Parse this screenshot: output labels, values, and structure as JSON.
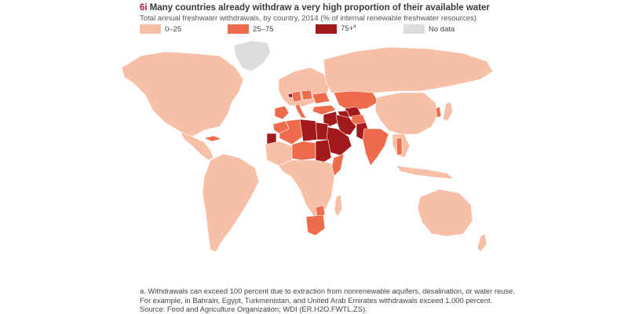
{
  "figure": {
    "number": "6i",
    "title": "Many countries already withdraw a very high proportion of their available water",
    "subtitle": "Total annual freshwater withdrawals, by country, 2014 (% of internal renewable freshwater resources)"
  },
  "legend": [
    {
      "label": "0–25",
      "color": "#f7bfa6",
      "note_marker": ""
    },
    {
      "label": "25–75",
      "color": "#ee6b4c",
      "note_marker": ""
    },
    {
      "label": "75+",
      "color": "#a31a1c",
      "note_marker": "a"
    },
    {
      "label": "No data",
      "color": "#dcdcdc",
      "note_marker": ""
    }
  ],
  "notes": {
    "footnote_line1": "a. Withdrawals can exceed 100 percent due to extraction from nonrenewable aquifers, desalination, or water reuse.",
    "footnote_line2": "For example, in Bahrain, Egypt, Turkmenistan, and United Arab Emirates withdrawals exceed 1,000 percent.",
    "source": "Source: Food and Agriculture Organization; WDI (ER.H2O.FWTL.ZS)."
  },
  "regions": [
    {
      "id": "north-america",
      "category": "0–25"
    },
    {
      "id": "greenland",
      "category": "No data"
    },
    {
      "id": "central-america",
      "category": "0–25"
    },
    {
      "id": "cuba",
      "category": "25–75"
    },
    {
      "id": "south-america",
      "category": "0–25"
    },
    {
      "id": "europe",
      "category": "0–25"
    },
    {
      "id": "iberia",
      "category": "25–75"
    },
    {
      "id": "italy",
      "category": "25–75"
    },
    {
      "id": "germany",
      "category": "25–75"
    },
    {
      "id": "poland",
      "category": "25–75"
    },
    {
      "id": "ukraine",
      "category": "25–75"
    },
    {
      "id": "belgium",
      "category": "75+"
    },
    {
      "id": "russia",
      "category": "0–25"
    },
    {
      "id": "kazakhstan",
      "category": "25–75"
    },
    {
      "id": "uzbekistan",
      "category": "75+"
    },
    {
      "id": "turkmenistan",
      "category": "75+"
    },
    {
      "id": "iran",
      "category": "75+"
    },
    {
      "id": "afghanistan",
      "category": "25–75"
    },
    {
      "id": "pakistan",
      "category": "75+"
    },
    {
      "id": "iraq-syria",
      "category": "75+"
    },
    {
      "id": "arabian-peninsula",
      "category": "75+"
    },
    {
      "id": "turkey",
      "category": "25–75"
    },
    {
      "id": "morocco",
      "category": "25–75"
    },
    {
      "id": "western-sahara",
      "category": "75+"
    },
    {
      "id": "algeria",
      "category": "25–75"
    },
    {
      "id": "libya",
      "category": "75+"
    },
    {
      "id": "egypt",
      "category": "75+"
    },
    {
      "id": "sudan",
      "category": "75+"
    },
    {
      "id": "sahel",
      "category": "0–25"
    },
    {
      "id": "niger-chad",
      "category": "25–75"
    },
    {
      "id": "somalia",
      "category": "25–75"
    },
    {
      "id": "india",
      "category": "25–75"
    },
    {
      "id": "china",
      "category": "0–25"
    },
    {
      "id": "korea",
      "category": "25–75"
    },
    {
      "id": "japan",
      "category": "0–25"
    },
    {
      "id": "thailand",
      "category": "25–75"
    },
    {
      "id": "southeast-asia",
      "category": "0–25"
    },
    {
      "id": "indonesia",
      "category": "0–25"
    },
    {
      "id": "central-africa",
      "category": "0–25"
    },
    {
      "id": "zimbabwe",
      "category": "25–75"
    },
    {
      "id": "south-africa",
      "category": "25–75"
    },
    {
      "id": "madagascar",
      "category": "0–25"
    },
    {
      "id": "australia",
      "category": "0–25"
    },
    {
      "id": "new-zealand",
      "category": "0–25"
    }
  ]
}
